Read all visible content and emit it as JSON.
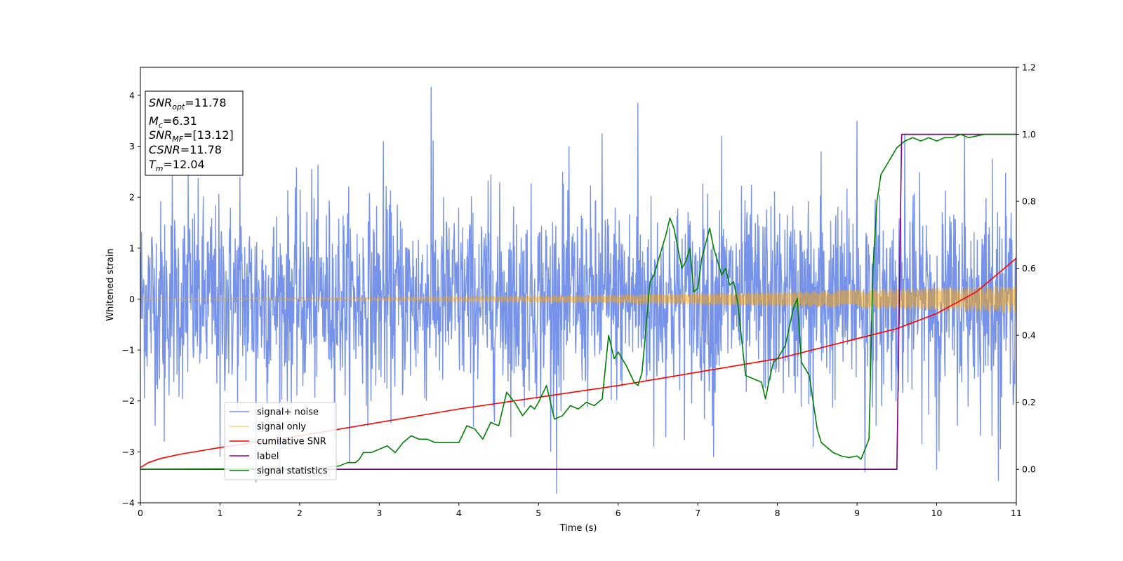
{
  "chart_data": {
    "type": "line",
    "xlabel": "Time (s)",
    "ylabel": "Whitened strain",
    "xlim": [
      0,
      11
    ],
    "ylim": [
      -4,
      4.55
    ],
    "ylim_right": [
      -0.1,
      1.2
    ],
    "x_ticks": [
      0,
      1,
      2,
      3,
      4,
      5,
      6,
      7,
      8,
      9,
      10,
      11
    ],
    "y_ticks": [
      -4,
      -3,
      -2,
      -1,
      0,
      1,
      2,
      3,
      4
    ],
    "y_ticks_right": [
      0.0,
      0.2,
      0.4,
      0.6,
      0.8,
      1.0,
      1.2
    ],
    "grid": false,
    "legend_position": "lower-left",
    "info_box": {
      "snr_opt": {
        "sym": "SNR",
        "sub": "opt",
        "value": "=11.78"
      },
      "mc": {
        "sym": "M",
        "sub": "c",
        "value": "=6.31"
      },
      "snr_mf": {
        "sym": "SNR",
        "sub": "MF",
        "value": "=[13.12]"
      },
      "csnr": {
        "sym": "CSNR",
        "sub": "",
        "value": "=11.78"
      },
      "tm": {
        "sym": "T",
        "sub": "m",
        "value": "=12.04"
      }
    },
    "series": [
      {
        "name": "signal+ noise",
        "color": "#4169e1",
        "axis": "left",
        "style": "dense-noise",
        "noise_std": 0.95,
        "x_range": [
          0,
          11
        ],
        "y_extremes": [
          [
            0.4,
            2.5
          ],
          [
            0.6,
            2.6
          ],
          [
            1.25,
            2.4
          ],
          [
            2.15,
            2.55
          ],
          [
            3.05,
            3.1
          ],
          [
            3.65,
            4.17
          ],
          [
            4.4,
            2.45
          ],
          [
            5.3,
            2.5
          ],
          [
            5.8,
            3.25
          ],
          [
            6.25,
            3.85
          ],
          [
            7.3,
            3.2
          ],
          [
            8.55,
            2.9
          ],
          [
            9.0,
            3.5
          ],
          [
            9.6,
            3.25
          ],
          [
            10.35,
            3.2
          ],
          [
            10.7,
            2.75
          ],
          [
            1.45,
            -3.6
          ],
          [
            1.0,
            -3.1
          ],
          [
            0.3,
            -2.8
          ],
          [
            5.15,
            -3.0
          ],
          [
            6.45,
            -2.9
          ],
          [
            7.2,
            -3.1
          ],
          [
            8.45,
            -2.9
          ],
          [
            9.1,
            -3.4
          ],
          [
            10.0,
            -3.35
          ],
          [
            10.8,
            -2.95
          ]
        ]
      },
      {
        "name": "signal only",
        "color": "#ffa500",
        "axis": "left",
        "style": "chirp",
        "amp_start": 0.02,
        "amp_end": 0.27,
        "x_range": [
          0,
          11
        ]
      },
      {
        "name": "cumilative SNR",
        "color": "#ff0000",
        "axis": "right",
        "x": [
          0,
          0.1,
          0.25,
          0.5,
          1,
          2,
          3,
          4,
          5,
          6,
          7,
          8,
          9,
          9.5,
          10,
          10.5,
          11
        ],
        "y": [
          0.005,
          0.02,
          0.032,
          0.045,
          0.065,
          0.1,
          0.14,
          0.18,
          0.215,
          0.25,
          0.29,
          0.33,
          0.39,
          0.42,
          0.465,
          0.53,
          0.63
        ]
      },
      {
        "name": "label",
        "color": "#800080",
        "axis": "right",
        "x": [
          0,
          9.5,
          9.56,
          11
        ],
        "y": [
          0,
          0,
          1,
          1
        ]
      },
      {
        "name": "signal statistics",
        "color": "#008000",
        "axis": "right",
        "x": [
          0,
          2.0,
          2.3,
          2.5,
          2.6,
          2.7,
          2.75,
          2.8,
          2.9,
          3.0,
          3.1,
          3.15,
          3.2,
          3.3,
          3.4,
          3.5,
          3.6,
          3.7,
          3.8,
          4.0,
          4.1,
          4.2,
          4.3,
          4.4,
          4.5,
          4.6,
          4.7,
          4.8,
          4.9,
          4.95,
          5.0,
          5.1,
          5.2,
          5.3,
          5.4,
          5.5,
          5.6,
          5.7,
          5.8,
          5.88,
          5.95,
          6.0,
          6.1,
          6.2,
          6.25,
          6.3,
          6.4,
          6.45,
          6.5,
          6.6,
          6.65,
          6.7,
          6.8,
          6.85,
          6.9,
          6.95,
          7.0,
          7.05,
          7.15,
          7.2,
          7.3,
          7.35,
          7.4,
          7.45,
          7.5,
          7.6,
          7.7,
          7.8,
          7.85,
          7.9,
          7.95,
          8.0,
          8.1,
          8.2,
          8.25,
          8.3,
          8.4,
          8.5,
          8.55,
          8.6,
          8.7,
          8.8,
          8.9,
          9.0,
          9.05,
          9.1,
          9.15,
          9.2,
          9.25,
          9.3,
          9.4,
          9.5,
          9.6,
          9.7,
          9.8,
          9.9,
          10.0,
          10.1,
          10.2,
          10.3,
          10.4,
          10.6,
          10.8,
          11.0
        ],
        "y": [
          0.0,
          0.002,
          0.005,
          0.01,
          0.02,
          0.02,
          0.03,
          0.05,
          0.05,
          0.06,
          0.07,
          0.06,
          0.05,
          0.08,
          0.1,
          0.09,
          0.09,
          0.08,
          0.08,
          0.08,
          0.13,
          0.12,
          0.09,
          0.14,
          0.13,
          0.23,
          0.2,
          0.16,
          0.19,
          0.18,
          0.2,
          0.25,
          0.15,
          0.16,
          0.19,
          0.18,
          0.2,
          0.19,
          0.21,
          0.4,
          0.33,
          0.35,
          0.31,
          0.26,
          0.25,
          0.29,
          0.56,
          0.58,
          0.62,
          0.7,
          0.75,
          0.72,
          0.6,
          0.62,
          0.66,
          0.53,
          0.54,
          0.63,
          0.72,
          0.66,
          0.58,
          0.6,
          0.55,
          0.56,
          0.5,
          0.28,
          0.27,
          0.26,
          0.21,
          0.27,
          0.32,
          0.33,
          0.37,
          0.48,
          0.51,
          0.32,
          0.28,
          0.12,
          0.08,
          0.07,
          0.05,
          0.04,
          0.035,
          0.04,
          0.03,
          0.06,
          0.09,
          0.6,
          0.8,
          0.88,
          0.92,
          0.96,
          0.98,
          0.99,
          0.98,
          0.99,
          0.98,
          0.99,
          0.99,
          1.0,
          0.99,
          1.0,
          1.0,
          1.0
        ]
      }
    ]
  }
}
